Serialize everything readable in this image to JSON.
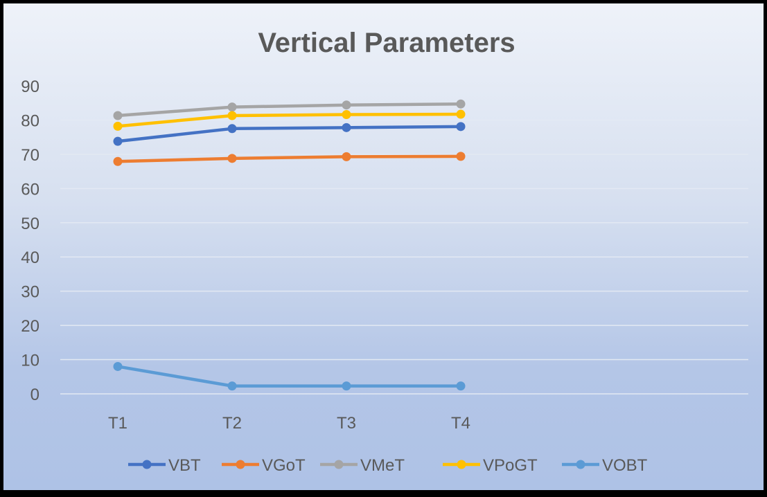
{
  "chart_data": {
    "type": "line",
    "title": "Vertical Parameters",
    "categories": [
      "T1",
      "T2",
      "T3",
      "T4"
    ],
    "ylim": [
      0,
      90
    ],
    "yticks": [
      0,
      10,
      20,
      30,
      40,
      50,
      60,
      70,
      80,
      90
    ],
    "xlabel": "",
    "ylabel": "",
    "grid": true,
    "legend_position": "bottom",
    "series": [
      {
        "name": "VBT",
        "color": "#4472C4",
        "values": [
          73.8,
          77.5,
          77.8,
          78.1
        ]
      },
      {
        "name": "VGoT",
        "color": "#ED7D31",
        "values": [
          67.9,
          68.8,
          69.3,
          69.4
        ]
      },
      {
        "name": "VMeT",
        "color": "#A5A5A5",
        "values": [
          81.3,
          83.8,
          84.4,
          84.7
        ]
      },
      {
        "name": "VPoGT",
        "color": "#FFC000",
        "values": [
          78.2,
          81.3,
          81.6,
          81.7
        ]
      },
      {
        "name": "VOBT",
        "color": "#5B9BD5",
        "values": [
          8.0,
          2.3,
          2.3,
          2.3
        ]
      }
    ]
  }
}
